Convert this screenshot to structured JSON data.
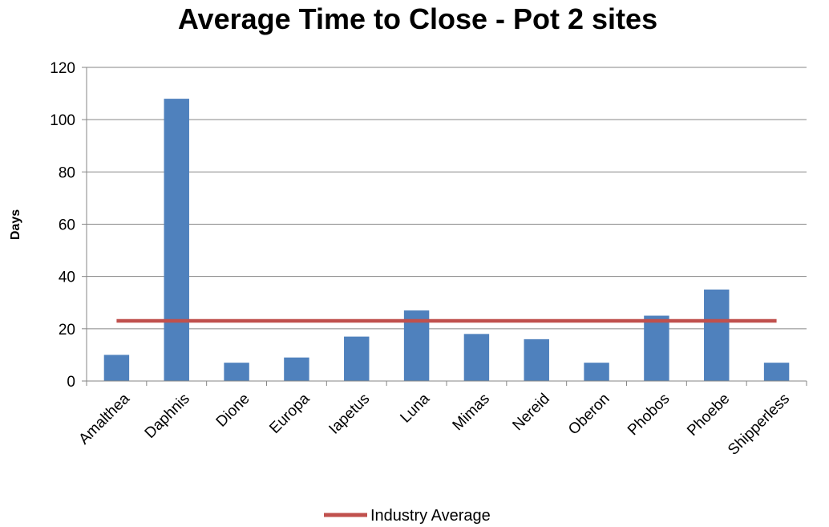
{
  "chart_data": {
    "type": "bar",
    "title": "Average Time to Close - Pot 2 sites",
    "xlabel": "",
    "ylabel": "Days",
    "ylim": [
      0,
      120
    ],
    "yticks": [
      0,
      20,
      40,
      60,
      80,
      100,
      120
    ],
    "grid": true,
    "legend_position": "bottom",
    "categories": [
      "Amalthea",
      "Daphnis",
      "Dione",
      "Europa",
      "Iapetus",
      "Luna",
      "Mimas",
      "Nereid",
      "Oberon",
      "Phobos",
      "Phoebe",
      "Shipperless"
    ],
    "series": [
      {
        "type": "bar",
        "color": "#4f81bd",
        "values": [
          10,
          108,
          7,
          9,
          17,
          27,
          18,
          16,
          7,
          25,
          35,
          7
        ]
      },
      {
        "name": "Industry Average",
        "type": "line",
        "color": "#c0504d",
        "values": [
          23,
          23,
          23,
          23,
          23,
          23,
          23,
          23,
          23,
          23,
          23,
          23
        ]
      }
    ]
  }
}
